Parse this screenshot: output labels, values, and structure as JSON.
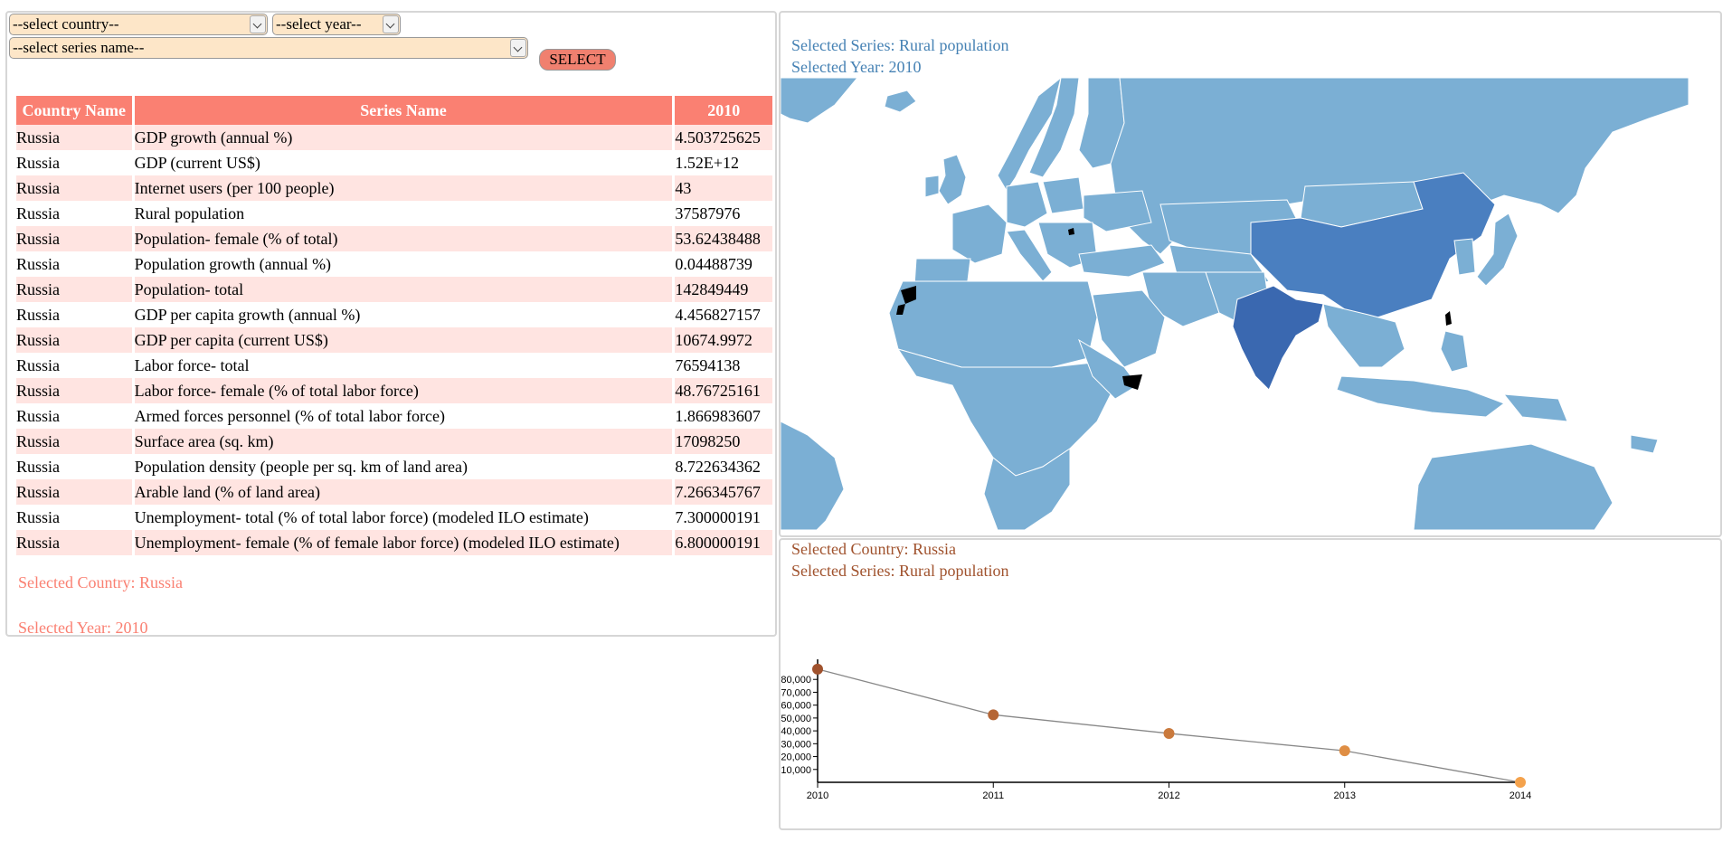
{
  "controls": {
    "country_select": "--select country--",
    "year_select": "--select year--",
    "series_select": "--select series name--",
    "select_button": "SELECT"
  },
  "table": {
    "headers": [
      "Country Name",
      "Series Name",
      "2010"
    ],
    "rows": [
      [
        "Russia",
        "GDP growth (annual %)",
        "4.503725625"
      ],
      [
        "Russia",
        "GDP (current US$)",
        "1.52E+12"
      ],
      [
        "Russia",
        "Internet users (per 100 people)",
        "43"
      ],
      [
        "Russia",
        "Rural population",
        "37587976"
      ],
      [
        "Russia",
        "Population- female (% of total)",
        "53.62438488"
      ],
      [
        "Russia",
        "Population growth (annual %)",
        "0.04488739"
      ],
      [
        "Russia",
        "Population- total",
        "142849449"
      ],
      [
        "Russia",
        "GDP per capita growth (annual %)",
        "4.456827157"
      ],
      [
        "Russia",
        "GDP per capita (current US$)",
        "10674.9972"
      ],
      [
        "Russia",
        "Labor force- total",
        "76594138"
      ],
      [
        "Russia",
        "Labor force- female (% of total labor force)",
        "48.76725161"
      ],
      [
        "Russia",
        "Armed forces personnel (% of total labor force)",
        "1.866983607"
      ],
      [
        "Russia",
        "Surface area (sq. km)",
        "17098250"
      ],
      [
        "Russia",
        "Population density (people per sq. km of land area)",
        "8.722634362"
      ],
      [
        "Russia",
        "Arable land (% of land area)",
        "7.266345767"
      ],
      [
        "Russia",
        "Unemployment- total (% of total labor force) (modeled ILO estimate)",
        "7.300000191"
      ],
      [
        "Russia",
        "Unemployment- female (% of female labor force) (modeled ILO estimate)",
        "6.800000191"
      ]
    ]
  },
  "left_info": {
    "selected_country": "Selected Country: Russia",
    "selected_year": "Selected Year: 2010"
  },
  "map_info": {
    "selected_series": "Selected Series: Rural population",
    "selected_year": "Selected Year: 2010"
  },
  "line_info": {
    "selected_country": "Selected Country: Russia",
    "selected_series": "Selected Series: Rural population"
  },
  "colors": {
    "table_header": "#fa8072",
    "table_stripe": "#ffe4e1",
    "map_land": "#7bafd4",
    "map_china": "#4a7fc0",
    "map_india": "#3a68b0",
    "map_missing": "#000000",
    "line_point_start": "#a0522d",
    "line_point_end": "#f4a24c"
  },
  "chart_data": {
    "type": "line",
    "x": [
      "2010",
      "2011",
      "2012",
      "2013",
      "2014"
    ],
    "series": [
      {
        "values": [
          88000,
          52500,
          38000,
          24500,
          0
        ]
      }
    ],
    "yticks": [
      "10,000",
      "20,000",
      "30,000",
      "40,000",
      "50,000",
      "60,000",
      "70,000",
      "80,000"
    ],
    "ylim": [
      0,
      90000
    ],
    "grid": false
  }
}
